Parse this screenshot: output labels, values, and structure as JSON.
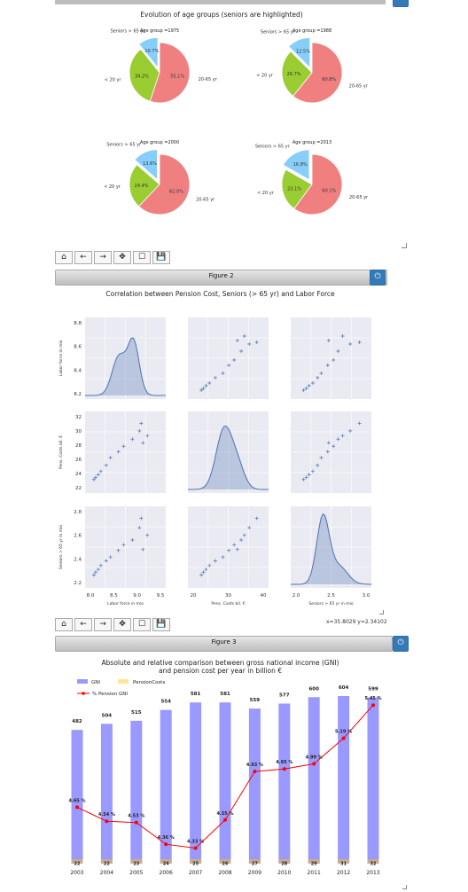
{
  "figure1": {
    "title": "Evolution of age groups (seniors are highlighted)",
    "pies": [
      {
        "title": "Age group =1975",
        "slices": [
          {
            "label": "Seniors > 65 yr",
            "pct": "10.7%",
            "value": 10.7
          },
          {
            "label": "20-65 yr",
            "pct": "55.1%",
            "value": 55.1
          },
          {
            "label": "< 20 yr",
            "pct": "34.2%",
            "value": 34.2
          }
        ]
      },
      {
        "title": "Age group =1988",
        "slices": [
          {
            "label": "Seniors > 65 yr",
            "pct": "12.5%",
            "value": 12.5
          },
          {
            "label": "20-65 yr",
            "pct": "60.8%",
            "value": 60.8
          },
          {
            "label": "< 20 yr",
            "pct": "26.7%",
            "value": 26.7
          }
        ]
      },
      {
        "title": "Age group =2000",
        "slices": [
          {
            "label": "Seniors > 65 yr",
            "pct": "13.6%",
            "value": 13.6
          },
          {
            "label": "20-65 yr",
            "pct": "62.0%",
            "value": 62.0
          },
          {
            "label": "< 20 yr",
            "pct": "24.4%",
            "value": 24.4
          }
        ]
      },
      {
        "title": "Age group =2013",
        "slices": [
          {
            "label": "Seniors > 65 yr",
            "pct": "16.8%",
            "value": 16.8
          },
          {
            "label": "20-65 yr",
            "pct": "60.1%",
            "value": 60.1
          },
          {
            "label": "< 20 yr",
            "pct": "23.1%",
            "value": 23.1
          }
        ]
      }
    ]
  },
  "toolbar": {
    "home": "⌂",
    "back": "←",
    "forward": "→",
    "pan": "✥",
    "zoom": "☐",
    "save": "💾"
  },
  "figure2": {
    "bar_title": "Figure 2",
    "title": "Correlation between Pension Cost, Seniors (> 65 yr) and Labor Force",
    "row_labels": [
      "Labor force in mio",
      "Pens. Costs bil. €",
      "Seniors > 65 yr in mio"
    ],
    "col_labels": [
      "Labor force in mio",
      "Pens. Costs bil. €",
      "Seniors > 65 yr in mio"
    ],
    "ticks": {
      "labor": [
        "8.2",
        "8.4",
        "8.6",
        "8.8"
      ],
      "costs": [
        "22",
        "24",
        "26",
        "28",
        "30",
        "32"
      ],
      "seniors": [
        "2.2",
        "2.4",
        "2.6",
        "2.8"
      ],
      "labor_x": [
        "8.0",
        "8.5",
        "9.0",
        "9.5"
      ],
      "costs_x": [
        "20",
        "30",
        "40"
      ],
      "seniors_x": [
        "2.0",
        "2.5",
        "3.0"
      ]
    },
    "readout": "x=35.8029 y=2.34102"
  },
  "figure3": {
    "bar_title": "Figure 3",
    "title": "Absolute and relative comparison between gross national income (GNI)",
    "subtitle": "and pension cost per year in billion €",
    "legend": {
      "gni": "GNI",
      "pension": "PensionCosts",
      "pct": "% Pension GNI"
    }
  },
  "chart_data": [
    {
      "type": "pie",
      "title": "Evolution of age groups (seniors are highlighted)",
      "subplots": [
        {
          "title": "Age group =1975",
          "labels": [
            "Seniors > 65 yr",
            "20-65 yr",
            "< 20 yr"
          ],
          "values": [
            10.7,
            55.1,
            34.2
          ]
        },
        {
          "title": "Age group =1988",
          "labels": [
            "Seniors > 65 yr",
            "20-65 yr",
            "< 20 yr"
          ],
          "values": [
            12.5,
            60.8,
            26.7
          ]
        },
        {
          "title": "Age group =2000",
          "labels": [
            "Seniors > 65 yr",
            "20-65 yr",
            "< 20 yr"
          ],
          "values": [
            13.6,
            62.0,
            24.4
          ]
        },
        {
          "title": "Age group =2013",
          "labels": [
            "Seniors > 65 yr",
            "20-65 yr",
            "< 20 yr"
          ],
          "values": [
            16.8,
            60.1,
            23.1
          ]
        }
      ],
      "colors": {
        "seniors": "#87cefa",
        "working": "#f08080",
        "young": "#9acd32"
      }
    },
    {
      "type": "scatter",
      "title": "Correlation between Pension Cost, Seniors (> 65 yr) and Labor Force",
      "variables": [
        "Labor force in mio",
        "Pens. Costs bil. €",
        "Seniors > 65 yr in mio"
      ],
      "points": [
        [
          8.19,
          22.5,
          2.23
        ],
        [
          8.21,
          22.9,
          2.26
        ],
        [
          8.24,
          23.4,
          2.29
        ],
        [
          8.27,
          24.0,
          2.33
        ],
        [
          8.33,
          25.1,
          2.38
        ],
        [
          8.38,
          26.5,
          2.42
        ],
        [
          8.47,
          27.6,
          2.49
        ],
        [
          8.53,
          28.6,
          2.55
        ],
        [
          8.63,
          29.9,
          2.6
        ],
        [
          8.71,
          31.4,
          2.73
        ],
        [
          8.73,
          32.8,
          2.83
        ],
        [
          8.75,
          29.2,
          2.5
        ],
        [
          8.8,
          30.5,
          2.65
        ]
      ],
      "ranges": {
        "labor": [
          8.15,
          8.95
        ],
        "costs": [
          21,
          34
        ],
        "seniors": [
          2.15,
          2.9
        ]
      },
      "color": "#4c72b0"
    },
    {
      "type": "bar",
      "title": "Absolute and relative comparison between gross national income (GNI)",
      "subtitle": "and pension cost per year in billion €",
      "categories": [
        "2003",
        "2004",
        "2005",
        "2006",
        "2007",
        "2008",
        "2009",
        "2010",
        "2011",
        "2012",
        "2013"
      ],
      "series": [
        {
          "name": "GNI",
          "values": [
            482,
            504,
            515,
            554,
            581,
            581,
            559,
            577,
            600,
            604,
            599
          ],
          "color": "#9999ff"
        },
        {
          "name": "PensionCosts",
          "values": [
            22,
            22,
            23,
            24,
            25,
            26,
            27,
            28,
            29,
            31,
            32
          ],
          "color": "#ffe699"
        },
        {
          "name": "% Pension GNI",
          "values": [
            4.65,
            4.54,
            4.53,
            4.36,
            4.33,
            4.55,
            4.93,
            4.95,
            4.99,
            5.19,
            5.45
          ],
          "labels": [
            "4.65 %",
            "4.54 %",
            "4.53 %",
            "4.36 %",
            "4.33 %",
            "4.55 %",
            "4.93 %",
            "4.95 %",
            "4.99 %",
            "5.19 %",
            "5.45 %"
          ],
          "color": "#ff0000"
        }
      ]
    }
  ]
}
